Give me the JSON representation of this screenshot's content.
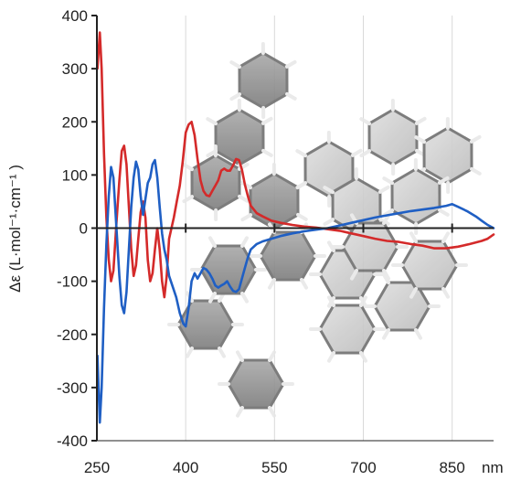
{
  "chart_data": {
    "type": "line",
    "title": "",
    "xlabel": "nm",
    "ylabel": "Δε (L·mol⁻¹·cm⁻¹ )",
    "xlim": [
      250,
      920
    ],
    "ylim": [
      -400,
      400
    ],
    "grid": "vertical",
    "legend": "none",
    "x_ticks": [
      250,
      400,
      550,
      700,
      850
    ],
    "x_tick_labels": [
      "250",
      "400",
      "550",
      "700",
      "850"
    ],
    "y_ticks": [
      400,
      300,
      200,
      100,
      0,
      -100,
      -200,
      -300,
      -400
    ],
    "y_tick_labels": [
      "400",
      "300",
      "200",
      "100",
      "0",
      "-100",
      "-200",
      "-300",
      "-400"
    ],
    "background_image": "stacked-helicene-molecular-model",
    "series": [
      {
        "color": "#d42a2a",
        "points": [
          [
            251,
            300
          ],
          [
            255,
            368
          ],
          [
            258,
            300
          ],
          [
            262,
            140
          ],
          [
            266,
            20
          ],
          [
            270,
            -60
          ],
          [
            274,
            -100
          ],
          [
            278,
            -80
          ],
          [
            283,
            10
          ],
          [
            288,
            90
          ],
          [
            292,
            145
          ],
          [
            296,
            155
          ],
          [
            300,
            120
          ],
          [
            304,
            40
          ],
          [
            308,
            -40
          ],
          [
            312,
            -90
          ],
          [
            316,
            -70
          ],
          [
            320,
            -20
          ],
          [
            324,
            30
          ],
          [
            328,
            50
          ],
          [
            332,
            20
          ],
          [
            336,
            -60
          ],
          [
            340,
            -100
          ],
          [
            344,
            -85
          ],
          [
            348,
            -40
          ],
          [
            352,
            0
          ],
          [
            356,
            -40
          ],
          [
            360,
            -100
          ],
          [
            364,
            -130
          ],
          [
            368,
            -90
          ],
          [
            372,
            -20
          ],
          [
            376,
            0
          ],
          [
            380,
            20
          ],
          [
            385,
            50
          ],
          [
            390,
            80
          ],
          [
            395,
            125
          ],
          [
            400,
            180
          ],
          [
            405,
            195
          ],
          [
            410,
            200
          ],
          [
            415,
            175
          ],
          [
            420,
            130
          ],
          [
            425,
            90
          ],
          [
            430,
            70
          ],
          [
            435,
            62
          ],
          [
            440,
            60
          ],
          [
            445,
            70
          ],
          [
            450,
            80
          ],
          [
            455,
            90
          ],
          [
            460,
            108
          ],
          [
            465,
            112
          ],
          [
            470,
            108
          ],
          [
            475,
            108
          ],
          [
            480,
            118
          ],
          [
            485,
            130
          ],
          [
            490,
            128
          ],
          [
            495,
            110
          ],
          [
            500,
            82
          ],
          [
            505,
            60
          ],
          [
            510,
            42
          ],
          [
            520,
            28
          ],
          [
            530,
            22
          ],
          [
            545,
            14
          ],
          [
            560,
            10
          ],
          [
            580,
            6
          ],
          [
            600,
            3
          ],
          [
            620,
            1
          ],
          [
            640,
            -2
          ],
          [
            660,
            -5
          ],
          [
            680,
            -10
          ],
          [
            700,
            -15
          ],
          [
            720,
            -20
          ],
          [
            740,
            -24
          ],
          [
            760,
            -26
          ],
          [
            780,
            -30
          ],
          [
            800,
            -33
          ],
          [
            820,
            -38
          ],
          [
            840,
            -38
          ],
          [
            860,
            -35
          ],
          [
            880,
            -30
          ],
          [
            900,
            -24
          ],
          [
            910,
            -20
          ],
          [
            920,
            -12
          ]
        ]
      },
      {
        "color": "#1f5fc4",
        "points": [
          [
            251,
            -240
          ],
          [
            255,
            -366
          ],
          [
            258,
            -300
          ],
          [
            262,
            -150
          ],
          [
            266,
            -30
          ],
          [
            270,
            60
          ],
          [
            274,
            115
          ],
          [
            278,
            95
          ],
          [
            283,
            0
          ],
          [
            288,
            -90
          ],
          [
            292,
            -145
          ],
          [
            296,
            -160
          ],
          [
            300,
            -120
          ],
          [
            304,
            -40
          ],
          [
            308,
            40
          ],
          [
            312,
            95
          ],
          [
            316,
            125
          ],
          [
            320,
            110
          ],
          [
            324,
            60
          ],
          [
            328,
            25
          ],
          [
            332,
            55
          ],
          [
            336,
            85
          ],
          [
            340,
            95
          ],
          [
            344,
            120
          ],
          [
            348,
            128
          ],
          [
            352,
            95
          ],
          [
            356,
            40
          ],
          [
            360,
            -10
          ],
          [
            364,
            -40
          ],
          [
            368,
            -60
          ],
          [
            372,
            -90
          ],
          [
            378,
            -110
          ],
          [
            384,
            -130
          ],
          [
            390,
            -160
          ],
          [
            396,
            -180
          ],
          [
            400,
            -185
          ],
          [
            405,
            -150
          ],
          [
            410,
            -100
          ],
          [
            415,
            -85
          ],
          [
            420,
            -95
          ],
          [
            425,
            -85
          ],
          [
            430,
            -75
          ],
          [
            435,
            -78
          ],
          [
            440,
            -85
          ],
          [
            445,
            -95
          ],
          [
            450,
            -108
          ],
          [
            455,
            -112
          ],
          [
            460,
            -108
          ],
          [
            465,
            -105
          ],
          [
            470,
            -100
          ],
          [
            475,
            -110
          ],
          [
            480,
            -118
          ],
          [
            485,
            -120
          ],
          [
            490,
            -115
          ],
          [
            495,
            -95
          ],
          [
            500,
            -75
          ],
          [
            505,
            -55
          ],
          [
            510,
            -40
          ],
          [
            520,
            -30
          ],
          [
            530,
            -25
          ],
          [
            545,
            -20
          ],
          [
            560,
            -15
          ],
          [
            580,
            -10
          ],
          [
            600,
            -6
          ],
          [
            620,
            -3
          ],
          [
            640,
            0
          ],
          [
            660,
            5
          ],
          [
            680,
            10
          ],
          [
            700,
            15
          ],
          [
            720,
            20
          ],
          [
            740,
            24
          ],
          [
            760,
            28
          ],
          [
            780,
            32
          ],
          [
            800,
            35
          ],
          [
            820,
            38
          ],
          [
            840,
            42
          ],
          [
            850,
            45
          ],
          [
            860,
            40
          ],
          [
            875,
            32
          ],
          [
            890,
            22
          ],
          [
            900,
            14
          ],
          [
            910,
            6
          ],
          [
            920,
            0
          ]
        ]
      }
    ]
  }
}
